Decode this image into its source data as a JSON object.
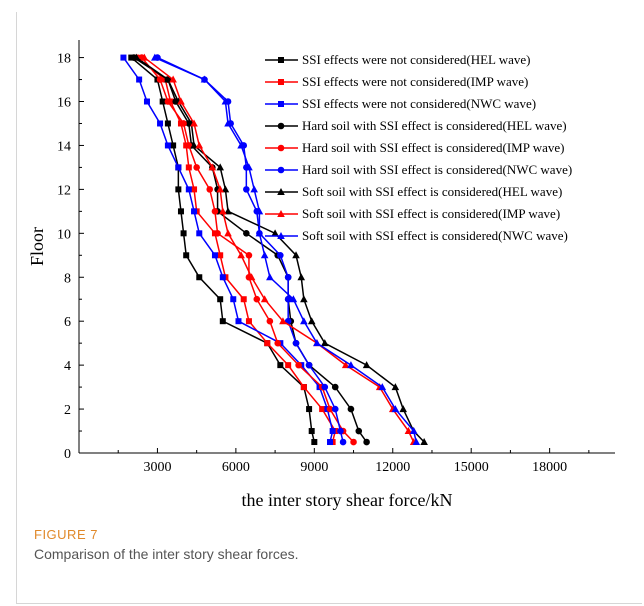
{
  "figure": {
    "label": "FIGURE 7",
    "caption": "Comparison of the inter story shear forces."
  },
  "chart_data": {
    "type": "line",
    "xlabel": "the inter story shear force/kN",
    "ylabel": "Floor",
    "xlim": [
      0,
      20500
    ],
    "ylim": [
      0,
      18.8
    ],
    "xticks": [
      3000,
      6000,
      9000,
      12000,
      15000,
      18000
    ],
    "yticks": [
      0,
      2,
      4,
      6,
      8,
      10,
      12,
      14,
      16,
      18
    ],
    "grid": false,
    "legend_position": "top-right",
    "y": [
      0.5,
      1,
      2,
      3,
      4,
      5,
      6,
      7,
      8,
      9,
      10,
      11,
      12,
      13,
      14,
      15,
      16,
      17,
      18
    ],
    "series": [
      {
        "name": "SSI effects were not considered(HEL wave)",
        "color": "#000000",
        "marker": "square",
        "values": [
          9000,
          8900,
          8800,
          8600,
          7700,
          7200,
          5500,
          5400,
          4600,
          4100,
          4000,
          3900,
          3800,
          3800,
          3600,
          3400,
          3200,
          3000,
          2000
        ]
      },
      {
        "name": "SSI effects were not considered(IMP wave)",
        "color": "#ff0000",
        "marker": "square",
        "values": [
          9700,
          9800,
          9300,
          8600,
          8000,
          7200,
          6500,
          6300,
          5600,
          5400,
          5200,
          4500,
          4400,
          4200,
          4100,
          3900,
          3500,
          3300,
          2200
        ]
      },
      {
        "name": "SSI effects were not considered(NWC wave)",
        "color": "#0000ff",
        "marker": "square",
        "values": [
          9600,
          9700,
          9500,
          9200,
          8500,
          7700,
          6100,
          5900,
          5500,
          5200,
          4600,
          4400,
          4200,
          3800,
          3400,
          3100,
          2600,
          2300,
          1700
        ]
      },
      {
        "name": "Hard soil with SSI effect is considered(HEL wave)",
        "color": "#000000",
        "marker": "circle",
        "values": [
          11000,
          10700,
          10400,
          9800,
          8800,
          8300,
          8100,
          8000,
          8000,
          7600,
          6400,
          5300,
          5300,
          5100,
          4300,
          4200,
          3700,
          3400,
          2100
        ]
      },
      {
        "name": "Hard soil with SSI effect is considered(IMP wave)",
        "color": "#ff0000",
        "marker": "circle",
        "values": [
          10500,
          10100,
          9600,
          9300,
          8400,
          7600,
          7300,
          6800,
          6500,
          6500,
          5300,
          5200,
          5000,
          4500,
          4200,
          4000,
          3400,
          3100,
          2400
        ]
      },
      {
        "name": "Hard soil with SSI effect is considered(NWC wave)",
        "color": "#0000ff",
        "marker": "circle",
        "values": [
          10100,
          10000,
          9800,
          9400,
          8800,
          8300,
          8000,
          8000,
          8000,
          7700,
          6900,
          6800,
          6400,
          6400,
          6300,
          5800,
          5700,
          4800,
          3000
        ]
      },
      {
        "name": "Soft soil with SSI effect is considered(HEL wave)",
        "color": "#000000",
        "marker": "triangle",
        "values": [
          13200,
          12800,
          12400,
          12100,
          11000,
          9400,
          8900,
          8600,
          8500,
          8300,
          7500,
          5700,
          5600,
          5400,
          4400,
          4300,
          3800,
          3400,
          2200
        ]
      },
      {
        "name": "Soft soil with SSI effect is considered(IMP wave)",
        "color": "#ff0000",
        "marker": "triangle",
        "values": [
          12800,
          12600,
          12000,
          11500,
          10200,
          9100,
          7800,
          7100,
          6600,
          6200,
          5700,
          5500,
          5400,
          5100,
          4600,
          4400,
          3900,
          3600,
          2500
        ]
      },
      {
        "name": "Soft soil with SSI effect is considered(NWC wave)",
        "color": "#0000ff",
        "marker": "triangle",
        "values": [
          12900,
          12800,
          12100,
          11600,
          10400,
          9100,
          8600,
          8200,
          7300,
          7100,
          6900,
          6900,
          6700,
          6500,
          6200,
          5700,
          5600,
          4800,
          2900
        ]
      }
    ]
  }
}
